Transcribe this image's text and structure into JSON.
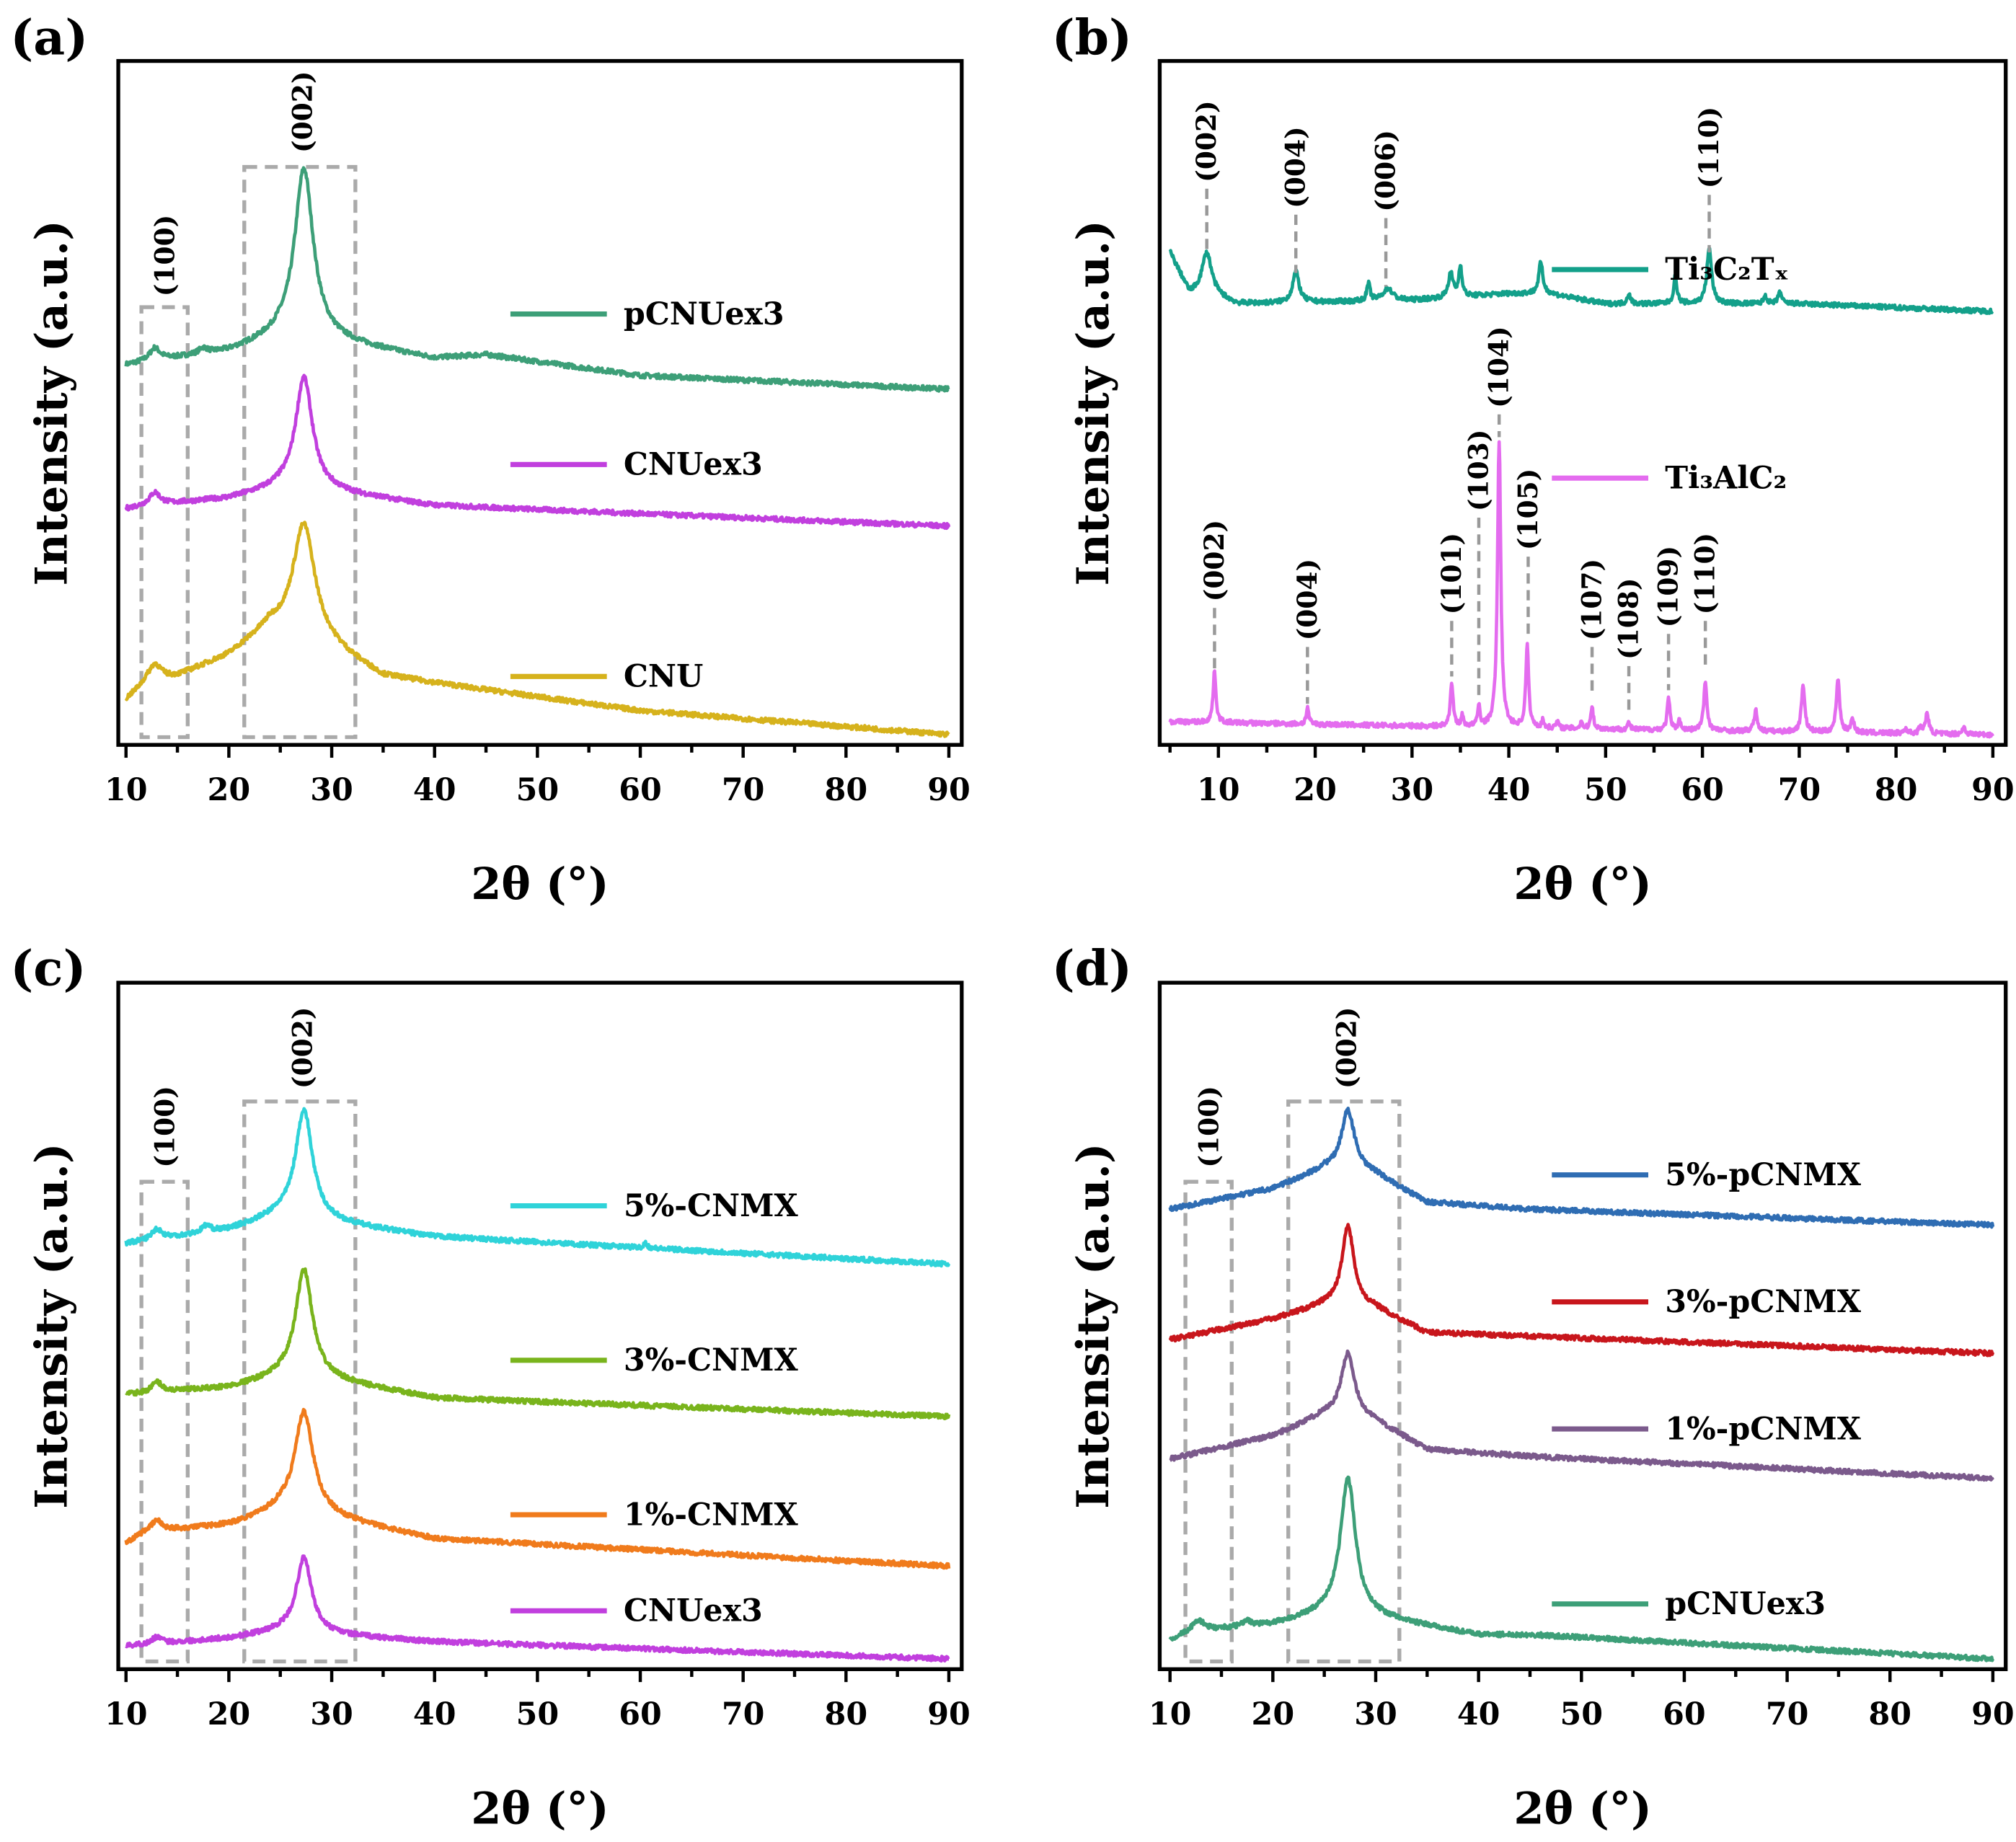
{
  "chart_data": [
    {
      "panel": "(a)",
      "type": "line",
      "xlabel": "2θ (°)",
      "ylabel": "Intensity (a.u.)",
      "xlim": [
        10,
        90
      ],
      "ylim": [
        0,
        100
      ],
      "xticks": [
        10,
        20,
        30,
        40,
        50,
        60,
        70,
        80,
        90
      ],
      "boxes": [
        {
          "x": [
            11.5,
            16
          ],
          "top": 64
        },
        {
          "x": [
            21.5,
            32.3
          ],
          "top": 84.5
        }
      ],
      "annotations": [
        {
          "label": "(100)",
          "x": 13.8,
          "y": 65,
          "line_to": null
        },
        {
          "label": "(002)",
          "x": 27.2,
          "y": 86,
          "line_to": null
        }
      ],
      "series": [
        {
          "name": "pCNUex3",
          "color": "#3d9f78",
          "legend_y": 63,
          "baseline": [
            [
              10,
              55.5
            ],
            [
              12,
              56
            ],
            [
              20,
              57.5
            ],
            [
              25,
              59.5
            ],
            [
              30,
              59
            ],
            [
              40,
              56.5
            ],
            [
              45,
              57
            ],
            [
              60,
              54
            ],
            [
              90,
              52
            ]
          ],
          "peaks": [
            [
              27.3,
              25,
              2.2
            ],
            [
              12.8,
              1.8,
              1.2
            ],
            [
              17.5,
              0.8,
              1
            ]
          ]
        },
        {
          "name": "CNUex3",
          "color": "#c13fde",
          "legend_y": 41,
          "baseline": [
            [
              10,
              34.5
            ],
            [
              12,
              35
            ],
            [
              20,
              36
            ],
            [
              25,
              37.5
            ],
            [
              30,
              37
            ],
            [
              40,
              35
            ],
            [
              90,
              32
            ]
          ],
          "peaks": [
            [
              27.3,
              16.5,
              2
            ],
            [
              12.8,
              1.8,
              1.2
            ]
          ]
        },
        {
          "name": "CNU",
          "color": "#d6b21c",
          "legend_y": 10,
          "baseline": [
            [
              10,
              6.6
            ],
            [
              12,
              9
            ],
            [
              15,
              10
            ],
            [
              20,
              13
            ],
            [
              24,
              17
            ],
            [
              30,
              14
            ],
            [
              35,
              10
            ],
            [
              45,
              8
            ],
            [
              60,
              5
            ],
            [
              90,
              1.5
            ]
          ],
          "peaks": [
            [
              27.3,
              17,
              2.6
            ],
            [
              12.8,
              2.5,
              1.5
            ]
          ]
        }
      ]
    },
    {
      "panel": "(b)",
      "type": "line",
      "xlabel": "2θ (°)",
      "ylabel": "Intensity (a.u.)",
      "xlim": [
        5,
        90
      ],
      "ylim": [
        0,
        100
      ],
      "xticks": [
        10,
        20,
        30,
        40,
        50,
        60,
        70,
        80,
        90
      ],
      "boxes": [],
      "annotations": [
        {
          "label": "(002)",
          "x": 8.8,
          "y": 81.7,
          "line_to": 72
        },
        {
          "label": "(004)",
          "x": 18,
          "y": 77.9,
          "line_to": 69
        },
        {
          "label": "(006)",
          "x": 27.3,
          "y": 77.4,
          "line_to": 67
        },
        {
          "label": "(110)",
          "x": 60.7,
          "y": 80.8,
          "line_to": 72
        },
        {
          "label": "(002)",
          "x": 9.6,
          "y": 20.4,
          "line_to": 11
        },
        {
          "label": "(004)",
          "x": 19.2,
          "y": 14.7,
          "line_to": 6
        },
        {
          "label": "(101)",
          "x": 34.1,
          "y": 18.5,
          "line_to": 10
        },
        {
          "label": "(103)",
          "x": 36.9,
          "y": 33.6,
          "line_to": 7
        },
        {
          "label": "(104)",
          "x": 39,
          "y": 48.7,
          "line_to": 45
        },
        {
          "label": "(105)",
          "x": 42,
          "y": 27.9,
          "line_to": 16
        },
        {
          "label": "(107)",
          "x": 48.6,
          "y": 14.7,
          "line_to": 7
        },
        {
          "label": "(108)",
          "x": 52.4,
          "y": 11.9,
          "line_to": 5
        },
        {
          "label": "(109)",
          "x": 56.5,
          "y": 16.6,
          "line_to": 8
        },
        {
          "label": "(110)",
          "x": 60.3,
          "y": 18.5,
          "line_to": 11
        }
      ],
      "series": [
        {
          "name": "Ti₃C₂Tₓ",
          "color": "#13a08a",
          "legend_y": 69.5,
          "baseline": [
            [
              5,
              72
            ],
            [
              7,
              66
            ],
            [
              9,
              66
            ],
            [
              12,
              64.5
            ],
            [
              30,
              65
            ],
            [
              40,
              66
            ],
            [
              44,
              66
            ],
            [
              50,
              64.5
            ],
            [
              70,
              64.5
            ],
            [
              90,
              63.4
            ]
          ],
          "peaks": [
            [
              8.8,
              6,
              1.2
            ],
            [
              18,
              4.5,
              0.8
            ],
            [
              25.5,
              2.5,
              0.4
            ],
            [
              27.5,
              1.8,
              1.2
            ],
            [
              34,
              3.5,
              0.6
            ],
            [
              35,
              4.5,
              0.4
            ],
            [
              43.3,
              4.5,
              0.5
            ],
            [
              52.4,
              1.5,
              0.4
            ],
            [
              57.2,
              4,
              0.4
            ],
            [
              60.7,
              8,
              0.6
            ],
            [
              66.5,
              1.2,
              0.4
            ],
            [
              68,
              1.8,
              0.4
            ]
          ]
        },
        {
          "name": "Ti₃AlC₂",
          "color": "#e46cef",
          "legend_y": 39,
          "baseline": [
            [
              5,
              3.4
            ],
            [
              40,
              2.5
            ],
            [
              90,
              1.5
            ]
          ],
          "peaks": [
            [
              9.6,
              7.5,
              0.35
            ],
            [
              19.2,
              2.5,
              0.3
            ],
            [
              34.1,
              6.5,
              0.35
            ],
            [
              35.2,
              1.5,
              0.3
            ],
            [
              36.9,
              3,
              0.3
            ],
            [
              39,
              42,
              0.4
            ],
            [
              41.9,
              12,
              0.35
            ],
            [
              43.5,
              1,
              0.3
            ],
            [
              45,
              1,
              0.3
            ],
            [
              47.5,
              1,
              0.3
            ],
            [
              48.6,
              3.5,
              0.3
            ],
            [
              52.4,
              1,
              0.3
            ],
            [
              56.5,
              4.5,
              0.35
            ],
            [
              57.6,
              1.5,
              0.3
            ],
            [
              60.3,
              7,
              0.4
            ],
            [
              65.5,
              3,
              0.4
            ],
            [
              70.4,
              7,
              0.4
            ],
            [
              74,
              8,
              0.4
            ],
            [
              75.5,
              2,
              0.4
            ],
            [
              81,
              0.7,
              0.4
            ],
            [
              82.5,
              1,
              0.3
            ],
            [
              83.2,
              3,
              0.4
            ],
            [
              87,
              1,
              0.4
            ]
          ]
        }
      ]
    },
    {
      "panel": "(c)",
      "type": "line",
      "xlabel": "2θ (°)",
      "ylabel": "Intensity (a.u.)",
      "xlim": [
        10,
        90
      ],
      "ylim": [
        0,
        100
      ],
      "xticks": [
        10,
        20,
        30,
        40,
        50,
        60,
        70,
        80,
        90
      ],
      "boxes": [
        {
          "x": [
            11.5,
            16
          ],
          "top": 71
        },
        {
          "x": [
            21.5,
            32.3
          ],
          "top": 82.7
        }
      ],
      "annotations": [
        {
          "label": "(100)",
          "x": 13.8,
          "y": 72.5,
          "line_to": null
        },
        {
          "label": "(002)",
          "x": 27.2,
          "y": 84,
          "line_to": null
        }
      ],
      "series": [
        {
          "name": "5%-CNMX",
          "color": "#2fd3d9",
          "legend_y": 67.5,
          "baseline": [
            [
              10,
              62
            ],
            [
              20,
              64
            ],
            [
              25,
              66
            ],
            [
              30,
              65
            ],
            [
              40,
              63
            ],
            [
              90,
              59
            ]
          ],
          "peaks": [
            [
              27.3,
              16,
              2
            ],
            [
              13,
              1.5,
              1.2
            ],
            [
              17.8,
              1,
              1
            ],
            [
              60.5,
              0.8,
              0.4
            ]
          ]
        },
        {
          "name": "3%-CNMX",
          "color": "#79b41c",
          "legend_y": 45,
          "baseline": [
            [
              10,
              40
            ],
            [
              20,
              41
            ],
            [
              25,
              42.5
            ],
            [
              30,
              42
            ],
            [
              40,
              39.5
            ],
            [
              90,
              36.8
            ]
          ],
          "peaks": [
            [
              27.3,
              16,
              2
            ],
            [
              13,
              1.5,
              1.2
            ]
          ]
        },
        {
          "name": "1%-CNMX",
          "color": "#f07b1c",
          "legend_y": 22.5,
          "baseline": [
            [
              10,
              18.4
            ],
            [
              12,
              20
            ],
            [
              20,
              21
            ],
            [
              25,
              23
            ],
            [
              30,
              22
            ],
            [
              40,
              19
            ],
            [
              90,
              15
            ]
          ],
          "peaks": [
            [
              27.3,
              15,
              2.2
            ],
            [
              13,
              1.5,
              1.2
            ]
          ]
        },
        {
          "name": "CNUex3",
          "color": "#c13fde",
          "legend_y": 8.5,
          "baseline": [
            [
              10,
              3.4
            ],
            [
              20,
              4.5
            ],
            [
              25,
              5.5
            ],
            [
              30,
              5
            ],
            [
              40,
              4
            ],
            [
              90,
              1.5
            ]
          ],
          "peaks": [
            [
              27.3,
              11,
              1.8
            ],
            [
              13,
              1,
              1
            ]
          ]
        }
      ]
    },
    {
      "panel": "(d)",
      "type": "line",
      "xlabel": "2θ (°)",
      "ylabel": "Intensity (a.u.)",
      "xlim": [
        10,
        90
      ],
      "ylim": [
        0,
        100
      ],
      "xticks": [
        10,
        20,
        30,
        40,
        50,
        60,
        70,
        80,
        90
      ],
      "boxes": [
        {
          "x": [
            11.5,
            16
          ],
          "top": 71
        },
        {
          "x": [
            21.5,
            32.3
          ],
          "top": 82.7
        }
      ],
      "annotations": [
        {
          "label": "(100)",
          "x": 13.8,
          "y": 72.5,
          "line_to": null
        },
        {
          "label": "(002)",
          "x": 27.2,
          "y": 84,
          "line_to": null
        }
      ],
      "series": [
        {
          "name": "5%-pCNMX",
          "color": "#2f6db3",
          "legend_y": 72,
          "baseline": [
            [
              10,
              67
            ],
            [
              20,
              70
            ],
            [
              25,
              72.8
            ],
            [
              30,
              72
            ],
            [
              35,
              68
            ],
            [
              45,
              67
            ],
            [
              90,
              64.7
            ]
          ],
          "peaks": [
            [
              27.3,
              9,
              1.6
            ]
          ]
        },
        {
          "name": "3%-pCNMX",
          "color": "#c8161c",
          "legend_y": 53.5,
          "baseline": [
            [
              10,
              48
            ],
            [
              20,
              51
            ],
            [
              25,
              53
            ],
            [
              30,
              52.5
            ],
            [
              35,
              49
            ],
            [
              45,
              48.5
            ],
            [
              90,
              46
            ]
          ],
          "peaks": [
            [
              27.3,
              12,
              1.4
            ]
          ]
        },
        {
          "name": "1%-pCNMX",
          "color": "#7b5a8c",
          "legend_y": 35,
          "baseline": [
            [
              10,
              30.6
            ],
            [
              20,
              34
            ],
            [
              25,
              37
            ],
            [
              30,
              36
            ],
            [
              35,
              32
            ],
            [
              45,
              31
            ],
            [
              90,
              27.8
            ]
          ],
          "peaks": [
            [
              27.3,
              9.5,
              1.6
            ]
          ]
        },
        {
          "name": "pCNUex3",
          "color": "#3d9f78",
          "legend_y": 9.5,
          "baseline": [
            [
              10,
              4.3
            ],
            [
              12,
              5.5
            ],
            [
              20,
              6.5
            ],
            [
              25,
              8
            ],
            [
              30,
              7.5
            ],
            [
              40,
              5
            ],
            [
              45,
              5
            ],
            [
              90,
              1.5
            ]
          ],
          "peaks": [
            [
              27.3,
              20,
              1.8
            ],
            [
              12.8,
              1.5,
              1.2
            ],
            [
              17.5,
              0.8,
              1
            ]
          ]
        }
      ]
    }
  ]
}
